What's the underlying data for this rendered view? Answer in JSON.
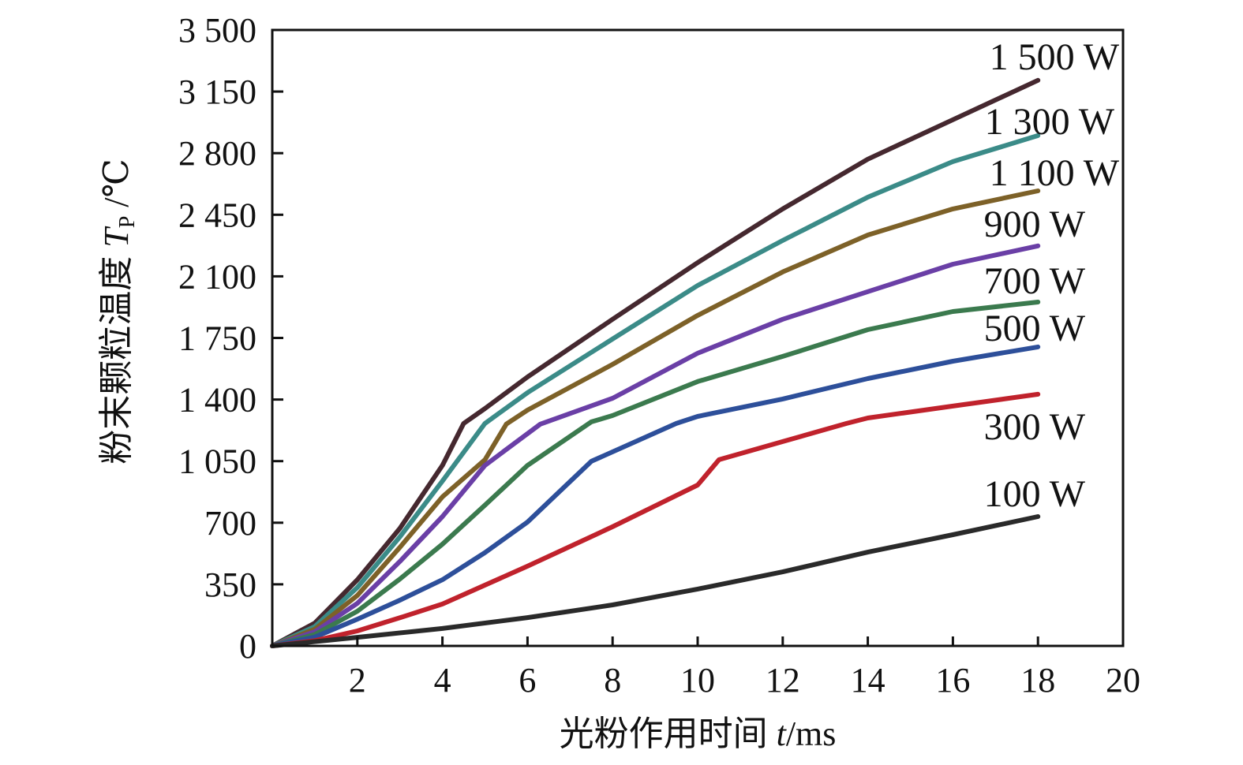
{
  "chart_data": {
    "type": "line",
    "title": "",
    "xlabel": {
      "text": "光粉作用时间 ",
      "var": "t",
      "unit": "/ms"
    },
    "ylabel": {
      "text": "粉末颗粒温度 ",
      "var": "T",
      "sub": "P",
      "unit": " /℃"
    },
    "xlim": [
      0,
      20
    ],
    "ylim": [
      0,
      3500
    ],
    "xticks": [
      2,
      4,
      6,
      8,
      10,
      12,
      14,
      16,
      18,
      20
    ],
    "xtick_labels": [
      "2",
      "4",
      "6",
      "8",
      "10",
      "12",
      "14",
      "16",
      "18",
      "20"
    ],
    "yticks": [
      0,
      350,
      700,
      1050,
      1400,
      1750,
      2100,
      2450,
      2800,
      3150,
      3500
    ],
    "ytick_labels": [
      "0",
      "350",
      "700",
      "1 050",
      "1 400",
      "1 750",
      "2 100",
      "2 450",
      "2 800",
      "3 150",
      "3 500"
    ],
    "grid": false,
    "legend": "inline-right",
    "series": [
      {
        "name": "1 500 W",
        "color": "#45282f",
        "x": [
          0,
          1,
          2,
          3,
          4,
          4.5,
          5,
          6,
          8,
          10,
          12,
          14,
          16,
          18
        ],
        "y": [
          0,
          130,
          376,
          668,
          1026,
          1264,
          1349,
          1528,
          1856,
          2178,
          2483,
          2766,
          2990,
          3214
        ]
      },
      {
        "name": "1 300 W",
        "color": "#3b8b88",
        "x": [
          0,
          1,
          2,
          3,
          4,
          5,
          6,
          8,
          10,
          12,
          14,
          16,
          18
        ],
        "y": [
          0,
          110,
          332,
          620,
          937,
          1264,
          1439,
          1744,
          2048,
          2304,
          2550,
          2752,
          2900
        ]
      },
      {
        "name": "1 100 W",
        "color": "#7d6128",
        "x": [
          0,
          1,
          2,
          3,
          4,
          5,
          5.5,
          6,
          8,
          10,
          12,
          14,
          16,
          18
        ],
        "y": [
          0,
          95,
          287,
          560,
          847,
          1058,
          1260,
          1340,
          1600,
          1878,
          2125,
          2335,
          2483,
          2586
        ]
      },
      {
        "name": "900 W",
        "color": "#6a3fa6",
        "x": [
          0,
          1,
          2,
          3,
          4,
          5,
          6.3,
          8,
          10,
          12,
          14,
          16,
          18
        ],
        "y": [
          0,
          80,
          242,
          480,
          735,
          1026,
          1260,
          1407,
          1663,
          1856,
          2013,
          2169,
          2273
        ]
      },
      {
        "name": "700 W",
        "color": "#3b7a4e",
        "x": [
          0,
          1,
          2,
          3,
          4,
          5,
          6,
          7.5,
          8,
          10,
          12,
          14,
          16,
          18
        ],
        "y": [
          0,
          65,
          197,
          380,
          578,
          800,
          1026,
          1273,
          1309,
          1502,
          1645,
          1797,
          1900,
          1954
        ]
      },
      {
        "name": "500 W",
        "color": "#2d4f9a",
        "x": [
          0,
          1,
          2,
          3,
          4,
          5,
          6,
          7.5,
          9.5,
          10,
          12,
          14,
          16,
          18
        ],
        "y": [
          0,
          50,
          152,
          260,
          376,
          530,
          704,
          1049,
          1264,
          1304,
          1403,
          1519,
          1618,
          1699
        ]
      },
      {
        "name": "300 W",
        "color": "#c0222c",
        "x": [
          0,
          1,
          2,
          3,
          4,
          6,
          8,
          10,
          10.5,
          12,
          13.5,
          14,
          16,
          18
        ],
        "y": [
          0,
          30,
          85,
          160,
          238,
          453,
          677,
          914,
          1058,
          1161,
          1264,
          1295,
          1363,
          1430
        ]
      },
      {
        "name": "100 W",
        "color": "#2a2a2a",
        "x": [
          0,
          2,
          4,
          6,
          8,
          10,
          12,
          14,
          16,
          18
        ],
        "y": [
          0,
          49,
          99,
          161,
          233,
          323,
          421,
          533,
          632,
          735
        ]
      }
    ]
  }
}
